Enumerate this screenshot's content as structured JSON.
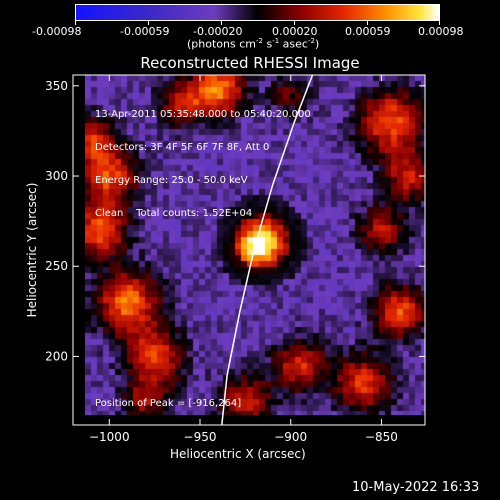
{
  "colorbar": {
    "ticks": [
      "-0.00098",
      "-0.00059",
      "-0.00020",
      "0.00020",
      "0.00059",
      "0.00098"
    ],
    "unit_prefix": "(photons cm",
    "unit_exp1": "-2",
    "unit_mid1": " s",
    "unit_exp2": "-1",
    "unit_mid2": " asec",
    "unit_exp3": "-2",
    "unit_suffix": ")"
  },
  "chart_data": {
    "type": "heatmap",
    "title": "Reconstructed RHESSI Image",
    "xlabel": "Heliocentric X (arcsec)",
    "ylabel": "Heliocentric Y (arcsec)",
    "xlim": [
      -1020,
      -826
    ],
    "ylim": [
      162,
      356
    ],
    "x_ticks": [
      -1000,
      -950,
      -900,
      -850
    ],
    "y_ticks": [
      200,
      250,
      300,
      350
    ],
    "x_tick_labels": [
      "−1000",
      "−950",
      "−900",
      "−850"
    ],
    "y_tick_labels": [
      "200",
      "250",
      "300",
      "350"
    ],
    "colorbar_range": [
      -0.00098,
      0.00098
    ],
    "colormap": "blue-purple-black-red-orange-yellow-white",
    "peak": {
      "x": -916,
      "y": 264
    },
    "source_features": [
      {
        "x": -915,
        "y": 264,
        "sigma": 10,
        "amp": 1.05
      },
      {
        "x": -922,
        "y": 258,
        "sigma": 8,
        "amp": 0.45
      },
      {
        "x": -1000,
        "y": 300,
        "sigma": 11,
        "amp": 0.75
      },
      {
        "x": -1005,
        "y": 270,
        "sigma": 10,
        "amp": 0.8
      },
      {
        "x": -990,
        "y": 230,
        "sigma": 12,
        "amp": 0.85
      },
      {
        "x": -975,
        "y": 200,
        "sigma": 11,
        "amp": 0.7
      },
      {
        "x": -1010,
        "y": 320,
        "sigma": 9,
        "amp": 0.6
      },
      {
        "x": -940,
        "y": 348,
        "sigma": 10,
        "amp": 0.9
      },
      {
        "x": -960,
        "y": 340,
        "sigma": 9,
        "amp": 0.55
      },
      {
        "x": -845,
        "y": 330,
        "sigma": 12,
        "amp": 0.8
      },
      {
        "x": -835,
        "y": 300,
        "sigma": 10,
        "amp": 0.6
      },
      {
        "x": -850,
        "y": 270,
        "sigma": 9,
        "amp": 0.55
      },
      {
        "x": -840,
        "y": 225,
        "sigma": 10,
        "amp": 0.75
      },
      {
        "x": -860,
        "y": 185,
        "sigma": 11,
        "amp": 0.7
      },
      {
        "x": -895,
        "y": 195,
        "sigma": 10,
        "amp": 0.65
      },
      {
        "x": -925,
        "y": 175,
        "sigma": 10,
        "amp": 0.6
      },
      {
        "x": -980,
        "y": 175,
        "sigma": 9,
        "amp": 0.45
      },
      {
        "x": -900,
        "y": 345,
        "sigma": 8,
        "amp": 0.35
      }
    ],
    "limb_curve": [
      [
        -938,
        162
      ],
      [
        -935,
        190
      ],
      [
        -928,
        225
      ],
      [
        -920,
        260
      ],
      [
        -910,
        295
      ],
      [
        -898,
        330
      ],
      [
        -888,
        356
      ]
    ],
    "info_lines": [
      "13-Apr-2011 05:35:48.000 to 05:40:20.000",
      "Detectors: 3F 4F 5F 6F 7F 8F, Att 0",
      "Energy Range: 25.0 - 50.0 keV",
      "Clean    Total counts: 1.52E+04"
    ],
    "peak_label": "Position of Peak = [-916,264]"
  },
  "footer": {
    "timestamp": "10-May-2022 16:33"
  }
}
